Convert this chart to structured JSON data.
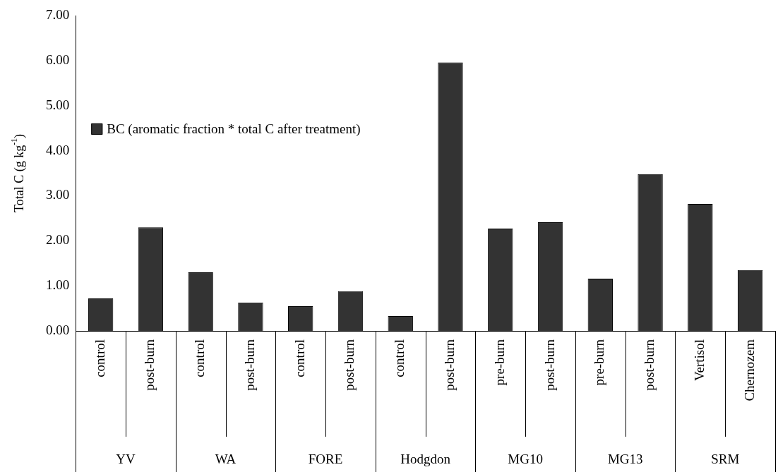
{
  "chart_data": {
    "type": "bar",
    "ylabel": "Total C (g kg$^{-1}$)",
    "categories": [
      "control",
      "post-burn",
      "control",
      "post-burn",
      "control",
      "post-burn",
      "control",
      "post-burn",
      "pre-burn",
      "post-burn",
      "pre-burn",
      "post-burn",
      "Vertisol",
      "Chernozem"
    ],
    "series": [
      {
        "name": "BC (aromatic fraction * total C after treatment)",
        "color": "#333333",
        "values": [
          0.72,
          2.3,
          1.3,
          0.63,
          0.55,
          0.88,
          0.33,
          5.96,
          2.27,
          2.41,
          1.16,
          3.48,
          2.82,
          1.35
        ]
      }
    ],
    "annotations": [
      "YV",
      "WA",
      "FORE",
      "Hodgdon",
      "MG10",
      "MG13",
      "SRM"
    ],
    "ylim": [
      0,
      7
    ],
    "yticks": [
      {
        "value": 0,
        "label": "0.00"
      },
      {
        "value": 1,
        "label": "1.00"
      },
      {
        "value": 2,
        "label": "2.00"
      },
      {
        "value": 3,
        "label": "3.00"
      },
      {
        "value": 4,
        "label": "4.00"
      },
      {
        "value": 5,
        "label": "5.00"
      },
      {
        "value": 6,
        "label": "6.00"
      },
      {
        "value": 7,
        "label": "7.00"
      }
    ],
    "grid": false,
    "legend": "left"
  }
}
